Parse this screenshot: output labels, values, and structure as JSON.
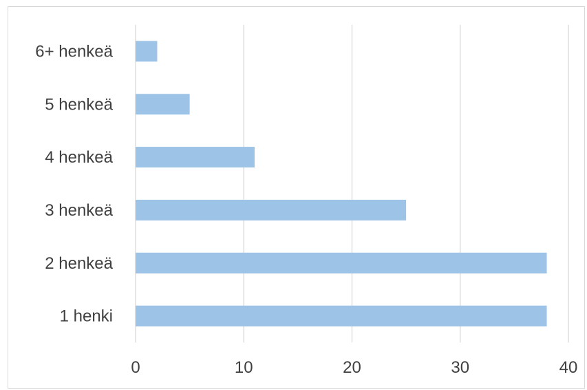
{
  "chart_data": {
    "type": "bar",
    "orientation": "horizontal",
    "categories": [
      "1 henki",
      "2 henkeä",
      "3 henkeä",
      "4 henkeä",
      "5 henkeä",
      "6+ henkeä"
    ],
    "values": [
      38,
      38,
      25,
      11,
      5,
      2
    ],
    "xlim": [
      0,
      40
    ],
    "xticks": [
      "0",
      "10",
      "20",
      "30",
      "40"
    ],
    "grid": "vertical",
    "legend": "none",
    "bar_color": "#9dc3e6",
    "gridline_color": "#d9d9d9"
  }
}
